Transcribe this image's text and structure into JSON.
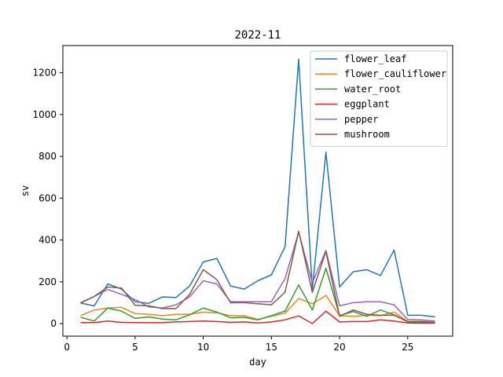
{
  "chart_data": {
    "type": "line",
    "title": "2022-11",
    "xlabel": "day",
    "ylabel": "sv",
    "xlim": [
      -0.3,
      28.3
    ],
    "ylim": [
      -60,
      1330
    ],
    "xticks": [
      0,
      5,
      10,
      15,
      20,
      25
    ],
    "yticks": [
      0,
      200,
      400,
      600,
      800,
      1000,
      1200
    ],
    "legend": "top-right",
    "grid": false,
    "x": [
      1,
      2,
      3,
      4,
      5,
      6,
      7,
      8,
      9,
      10,
      11,
      12,
      13,
      14,
      15,
      16,
      17,
      18,
      19,
      20,
      21,
      22,
      23,
      24,
      25,
      26,
      27
    ],
    "series": [
      {
        "name": "flower_leaf",
        "color": "#1f77b4",
        "values": [
          98,
          85,
          190,
          165,
          105,
          97,
          128,
          125,
          180,
          295,
          312,
          180,
          165,
          205,
          233,
          368,
          1265,
          165,
          820,
          175,
          248,
          258,
          230,
          352,
          40,
          40,
          32
        ]
      },
      {
        "name": "flower_cauliflower",
        "color": "#ff7f0e",
        "values": [
          38,
          65,
          75,
          78,
          48,
          45,
          38,
          45,
          45,
          55,
          52,
          38,
          38,
          20,
          35,
          50,
          120,
          95,
          135,
          38,
          35,
          40,
          38,
          55,
          10,
          10,
          8
        ]
      },
      {
        "name": "water_root",
        "color": "#2ca02c",
        "values": [
          30,
          12,
          75,
          60,
          25,
          32,
          22,
          18,
          42,
          75,
          55,
          28,
          30,
          18,
          38,
          60,
          185,
          65,
          265,
          38,
          58,
          35,
          65,
          42,
          8,
          6,
          5
        ]
      },
      {
        "name": "eggplant",
        "color": "#d62728",
        "values": [
          5,
          5,
          12,
          6,
          5,
          5,
          5,
          8,
          10,
          12,
          10,
          6,
          8,
          3,
          8,
          18,
          37,
          0,
          60,
          8,
          10,
          10,
          18,
          12,
          3,
          2,
          2
        ]
      },
      {
        "name": "pepper",
        "color": "#9467bd",
        "values": [
          100,
          130,
          163,
          140,
          115,
          80,
          75,
          90,
          128,
          205,
          190,
          105,
          105,
          105,
          105,
          215,
          438,
          195,
          350,
          85,
          100,
          105,
          105,
          90,
          20,
          18,
          12
        ]
      },
      {
        "name": "mushroom",
        "color": "#8c564b",
        "values": [
          98,
          130,
          175,
          170,
          88,
          85,
          72,
          72,
          140,
          258,
          210,
          100,
          100,
          95,
          90,
          150,
          442,
          150,
          345,
          35,
          65,
          45,
          40,
          40,
          10,
          10,
          5
        ]
      }
    ]
  }
}
